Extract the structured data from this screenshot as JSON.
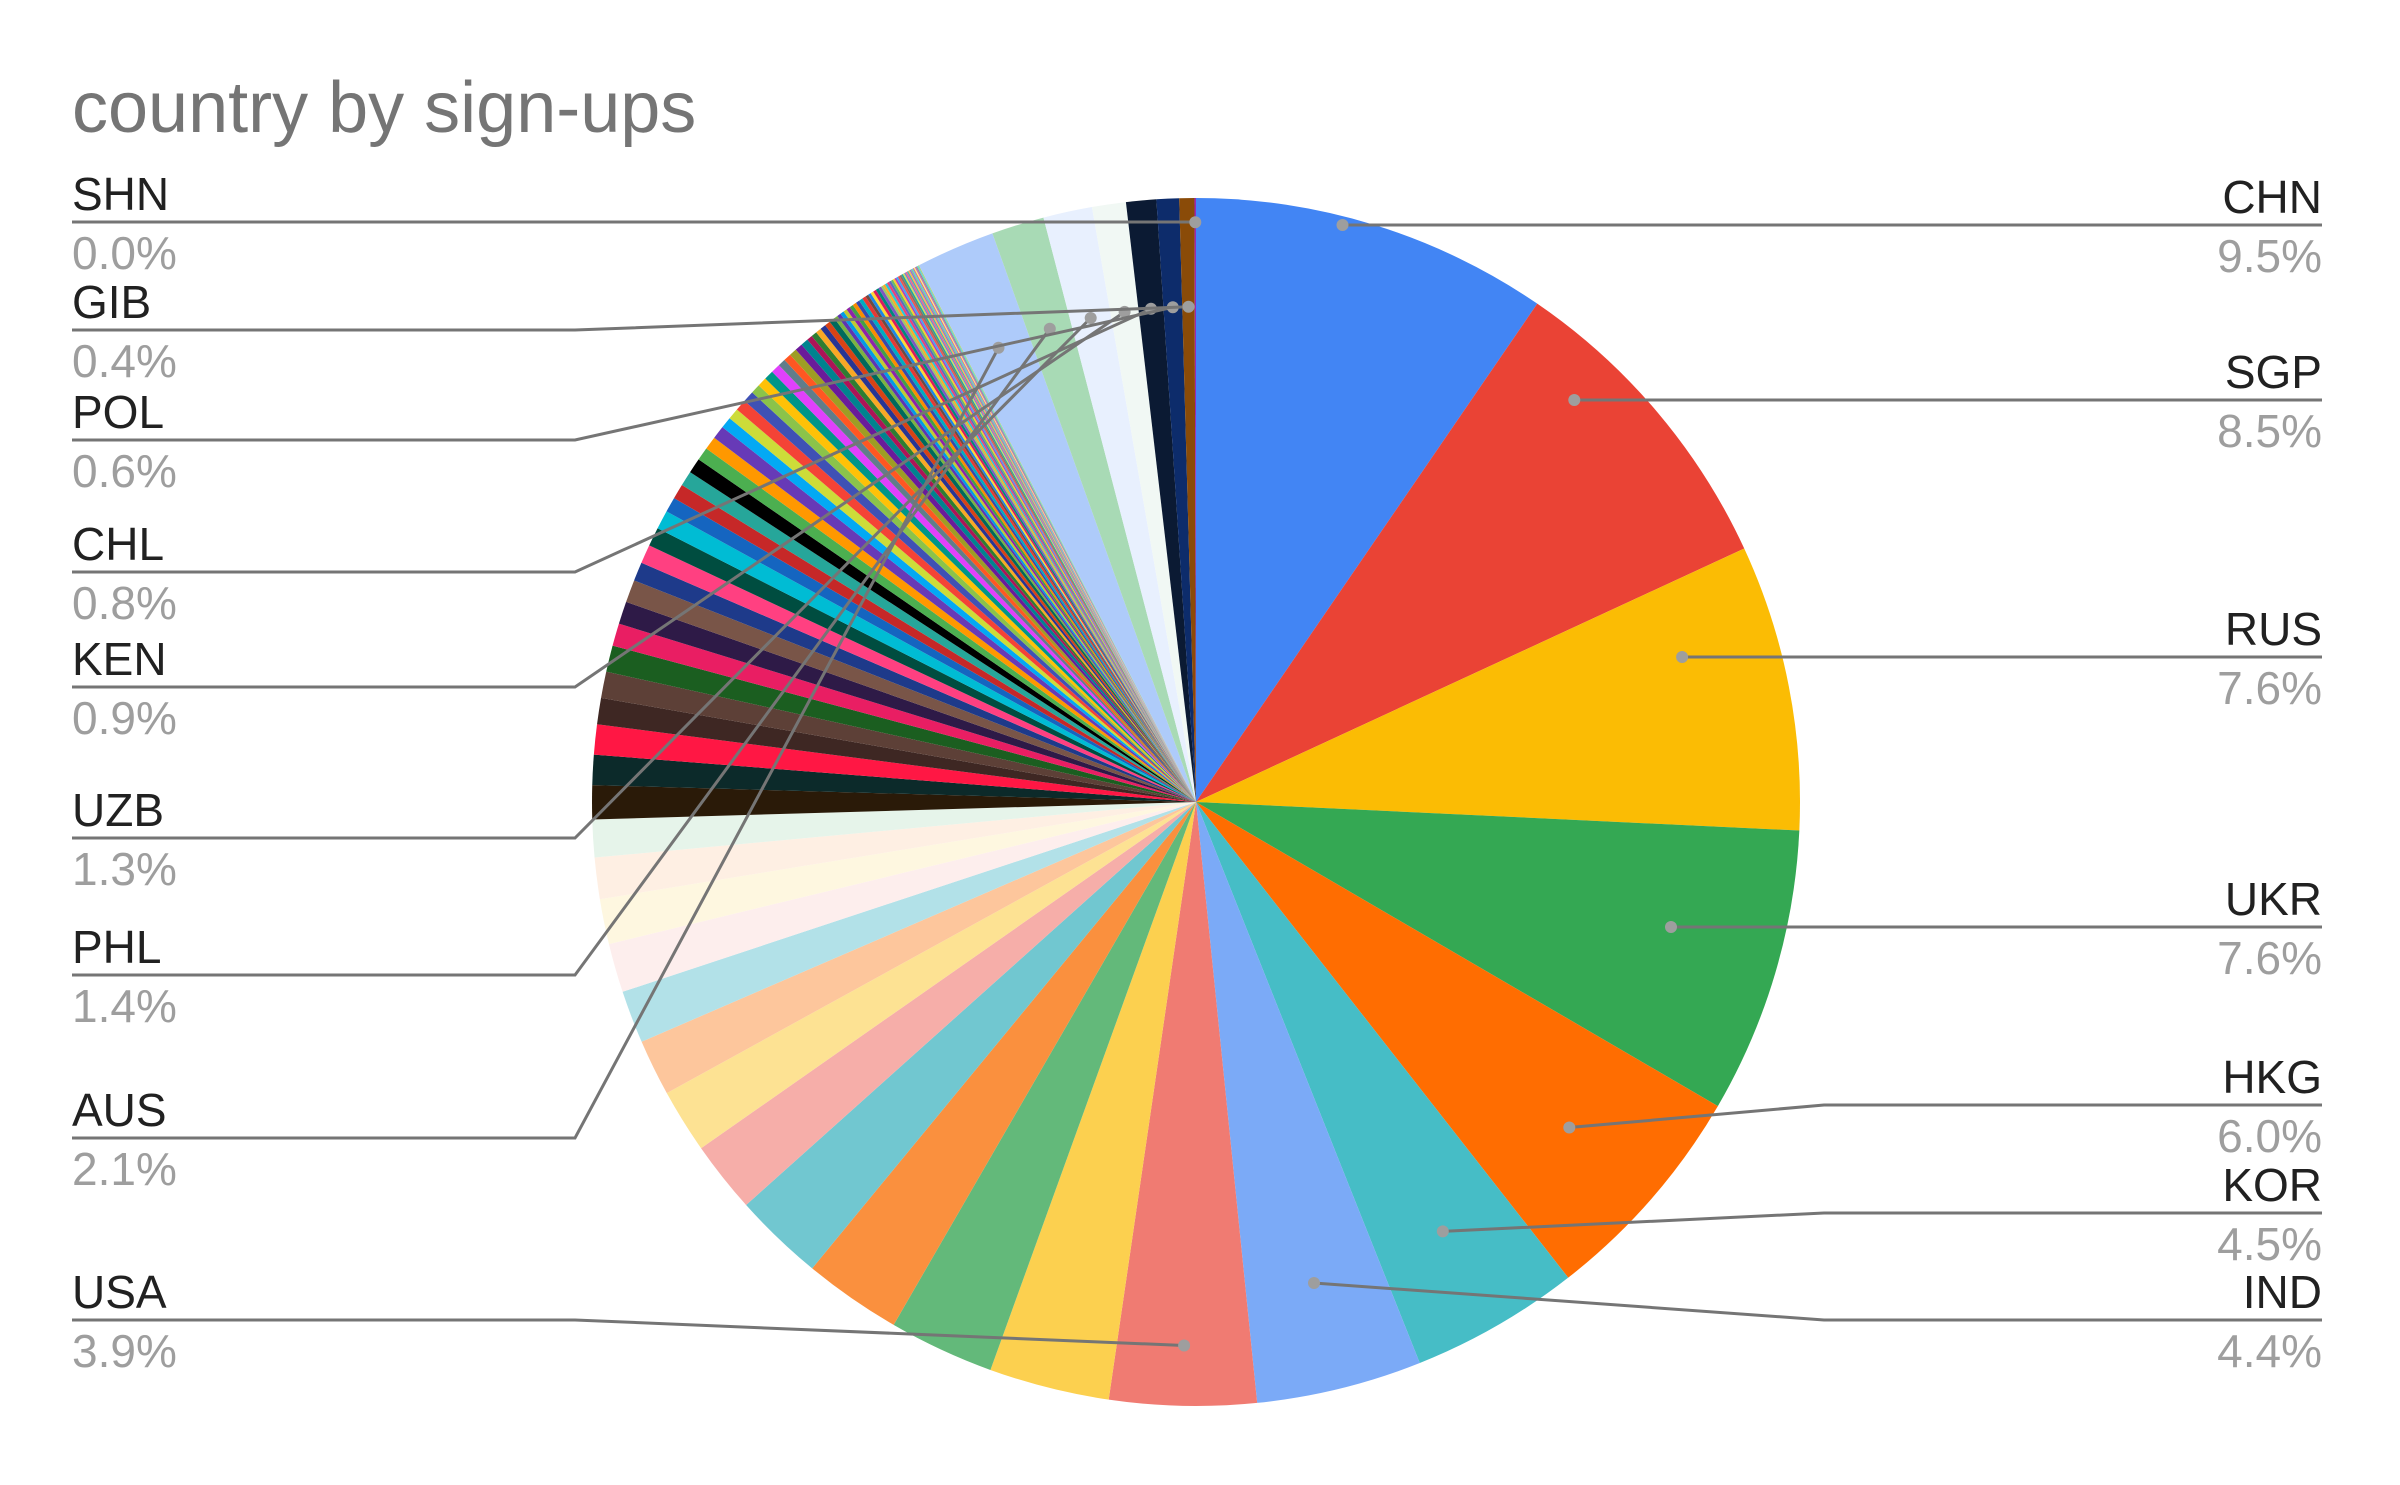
{
  "chart_data": {
    "type": "pie",
    "title": "country by sign-ups",
    "labeled_slices": [
      {
        "label": "CHN",
        "percent": "9.5%",
        "value": 9.5,
        "color": "#4285f4"
      },
      {
        "label": "SGP",
        "percent": "8.5%",
        "value": 8.5,
        "color": "#ea4335"
      },
      {
        "label": "RUS",
        "percent": "7.6%",
        "value": 7.6,
        "color": "#fbbc04"
      },
      {
        "label": "UKR",
        "percent": "7.6%",
        "value": 7.6,
        "color": "#34a853"
      },
      {
        "label": "HKG",
        "percent": "6.0%",
        "value": 6.0,
        "color": "#ff6d01"
      },
      {
        "label": "KOR",
        "percent": "4.5%",
        "value": 4.5,
        "color": "#46bdc6"
      },
      {
        "label": "IND",
        "percent": "4.4%",
        "value": 4.4,
        "color": "#7baaf7"
      },
      {
        "label": "USA",
        "percent": "3.9%",
        "value": 3.9,
        "color": "#f07b72"
      },
      {
        "label": "AUS",
        "percent": "2.1%",
        "value": 2.1,
        "color": "#aecbfa"
      },
      {
        "label": "PHL",
        "percent": "1.4%",
        "value": 1.4,
        "color": "#a8dab5"
      },
      {
        "label": "UZB",
        "percent": "1.3%",
        "value": 1.3,
        "color": "#e8f0fe"
      },
      {
        "label": "KEN",
        "percent": "0.9%",
        "value": 0.9,
        "color": "#f1f8f4"
      },
      {
        "label": "CHL",
        "percent": "0.8%",
        "value": 0.8,
        "color": "#0b1a33"
      },
      {
        "label": "POL",
        "percent": "0.6%",
        "value": 0.6,
        "color": "#0d2c6b"
      },
      {
        "label": "GIB",
        "percent": "0.4%",
        "value": 0.4,
        "color": "#8a4b08"
      },
      {
        "label": "SHN",
        "percent": "0.0%",
        "value": 0.0,
        "color": "#9c27b0"
      }
    ],
    "unlabeled_slices": [
      {
        "value": 3.2,
        "color": "#fcd04f"
      },
      {
        "value": 2.8,
        "color": "#63b97a"
      },
      {
        "value": 2.6,
        "color": "#fa903e"
      },
      {
        "value": 2.4,
        "color": "#71c7d0"
      },
      {
        "value": 1.9,
        "color": "#f6aea9"
      },
      {
        "value": 1.7,
        "color": "#fde293"
      },
      {
        "value": 1.5,
        "color": "#fdc69c"
      },
      {
        "value": 1.4,
        "color": "#b2e1e8"
      },
      {
        "value": 1.3,
        "color": "#fdeeed"
      },
      {
        "value": 1.2,
        "color": "#fef7e0"
      },
      {
        "value": 1.1,
        "color": "#feefe3"
      },
      {
        "value": 1.0,
        "color": "#e6f4ea"
      },
      {
        "value": 0.9,
        "color": "#2a1a08"
      },
      {
        "value": 0.8,
        "color": "#0c2a2a"
      },
      {
        "value": 0.8,
        "color": "#ff1744"
      },
      {
        "value": 0.7,
        "color": "#3e2723"
      },
      {
        "value": 0.7,
        "color": "#5d4037"
      },
      {
        "value": 0.7,
        "color": "#1b5e20"
      },
      {
        "value": 0.6,
        "color": "#e91e63"
      },
      {
        "value": 0.6,
        "color": "#2e1a47"
      },
      {
        "value": 0.6,
        "color": "#795548"
      },
      {
        "value": 0.5,
        "color": "#1e3a8a"
      },
      {
        "value": 0.5,
        "color": "#ff4081"
      },
      {
        "value": 0.5,
        "color": "#004d40"
      },
      {
        "value": 0.5,
        "color": "#00bcd4"
      },
      {
        "value": 0.4,
        "color": "#1565c0"
      },
      {
        "value": 0.4,
        "color": "#c62828"
      },
      {
        "value": 0.4,
        "color": "#26a69a"
      },
      {
        "value": 0.4,
        "color": "#000000"
      },
      {
        "value": 0.35,
        "color": "#4caf50"
      },
      {
        "value": 0.35,
        "color": "#ff9800"
      },
      {
        "value": 0.35,
        "color": "#673ab7"
      },
      {
        "value": 0.3,
        "color": "#03a9f4"
      },
      {
        "value": 0.3,
        "color": "#cddc39"
      },
      {
        "value": 0.3,
        "color": "#f44336"
      },
      {
        "value": 0.3,
        "color": "#3f51b5"
      },
      {
        "value": 0.25,
        "color": "#8bc34a"
      },
      {
        "value": 0.25,
        "color": "#ffc107"
      },
      {
        "value": 0.25,
        "color": "#009688"
      },
      {
        "value": 0.25,
        "color": "#e040fb"
      },
      {
        "value": 0.2,
        "color": "#607d8b"
      },
      {
        "value": 0.2,
        "color": "#ff5722"
      },
      {
        "value": 0.2,
        "color": "#9e9d24"
      },
      {
        "value": 0.2,
        "color": "#6a1b9a"
      },
      {
        "value": 0.2,
        "color": "#00838f"
      },
      {
        "value": 0.15,
        "color": "#ad1457"
      },
      {
        "value": 0.15,
        "color": "#2e7d32"
      },
      {
        "value": 0.15,
        "color": "#f9a825"
      },
      {
        "value": 0.15,
        "color": "#283593"
      },
      {
        "value": 0.15,
        "color": "#d84315"
      },
      {
        "value": 0.15,
        "color": "#00695c"
      },
      {
        "value": 0.1,
        "color": "#7cb342"
      },
      {
        "value": 0.1,
        "color": "#5e35b1"
      },
      {
        "value": 0.1,
        "color": "#039be5"
      },
      {
        "value": 0.1,
        "color": "#c0ca33"
      },
      {
        "value": 0.1,
        "color": "#8e24aa"
      },
      {
        "value": 0.1,
        "color": "#43a047"
      },
      {
        "value": 0.1,
        "color": "#fb8c00"
      },
      {
        "value": 0.1,
        "color": "#3949ab"
      },
      {
        "value": 0.1,
        "color": "#00acc1"
      },
      {
        "value": 0.1,
        "color": "#e53935"
      },
      {
        "value": 0.08,
        "color": "#6d4c41"
      },
      {
        "value": 0.08,
        "color": "#1e88e5"
      },
      {
        "value": 0.08,
        "color": "#fdd835"
      },
      {
        "value": 0.08,
        "color": "#d81b60"
      },
      {
        "value": 0.08,
        "color": "#00897b"
      },
      {
        "value": 0.08,
        "color": "#7e57c2"
      },
      {
        "value": 0.06,
        "color": "#9ccc65"
      },
      {
        "value": 0.06,
        "color": "#ffa726"
      },
      {
        "value": 0.06,
        "color": "#26c6da"
      },
      {
        "value": 0.06,
        "color": "#ec407a"
      },
      {
        "value": 0.06,
        "color": "#5c6bc0"
      },
      {
        "value": 0.06,
        "color": "#66bb6a"
      },
      {
        "value": 0.05,
        "color": "#ffca28"
      },
      {
        "value": 0.05,
        "color": "#ab47bc"
      },
      {
        "value": 0.05,
        "color": "#42a5f5"
      },
      {
        "value": 0.05,
        "color": "#ef5350"
      },
      {
        "value": 0.05,
        "color": "#8d6e63"
      },
      {
        "value": 0.05,
        "color": "#26a69a"
      },
      {
        "value": 0.04,
        "color": "#d4e157"
      },
      {
        "value": 0.04,
        "color": "#7986cb"
      },
      {
        "value": 0.04,
        "color": "#f06292"
      },
      {
        "value": 0.04,
        "color": "#4db6ac"
      },
      {
        "value": 0.04,
        "color": "#ffb74d"
      },
      {
        "value": 0.04,
        "color": "#9575cd"
      },
      {
        "value": 0.03,
        "color": "#81c784"
      },
      {
        "value": 0.03,
        "color": "#4fc3f7"
      },
      {
        "value": 0.03,
        "color": "#e57373"
      },
      {
        "value": 0.03,
        "color": "#fff176"
      },
      {
        "value": 0.03,
        "color": "#ba68c8"
      },
      {
        "value": 0.03,
        "color": "#a1887f"
      },
      {
        "value": 0.03,
        "color": "#4dd0e1"
      },
      {
        "value": 0.03,
        "color": "#aed581"
      }
    ]
  }
}
